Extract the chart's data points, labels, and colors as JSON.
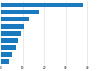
{
  "values": [
    38.1,
    17.4,
    13.2,
    10.5,
    9.3,
    8.1,
    6.8,
    5.2,
    3.9
  ],
  "bar_color": "#1a7abf",
  "background_color": "#ffffff",
  "grid_color": "#d9d9d9",
  "xlim": [
    0,
    45
  ],
  "xticks": [
    0,
    10,
    20,
    30,
    40
  ],
  "figsize": [
    1.0,
    0.71
  ],
  "dpi": 100,
  "bar_height": 0.65
}
